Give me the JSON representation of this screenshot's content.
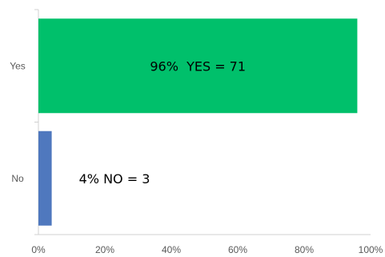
{
  "chart_data": {
    "type": "bar",
    "orientation": "horizontal",
    "categories": [
      "Yes",
      "No"
    ],
    "values": [
      96,
      4
    ],
    "data_labels": [
      "96%  YES = 71",
      "4% NO = 3"
    ],
    "colors": [
      "#00c06b",
      "#4f78be"
    ],
    "xlim": [
      0,
      100
    ],
    "xticks": [
      "0%",
      "20%",
      "40%",
      "60%",
      "80%",
      "100%"
    ],
    "title": "",
    "xlabel": "",
    "ylabel": "",
    "grid": false,
    "legend": "none"
  }
}
